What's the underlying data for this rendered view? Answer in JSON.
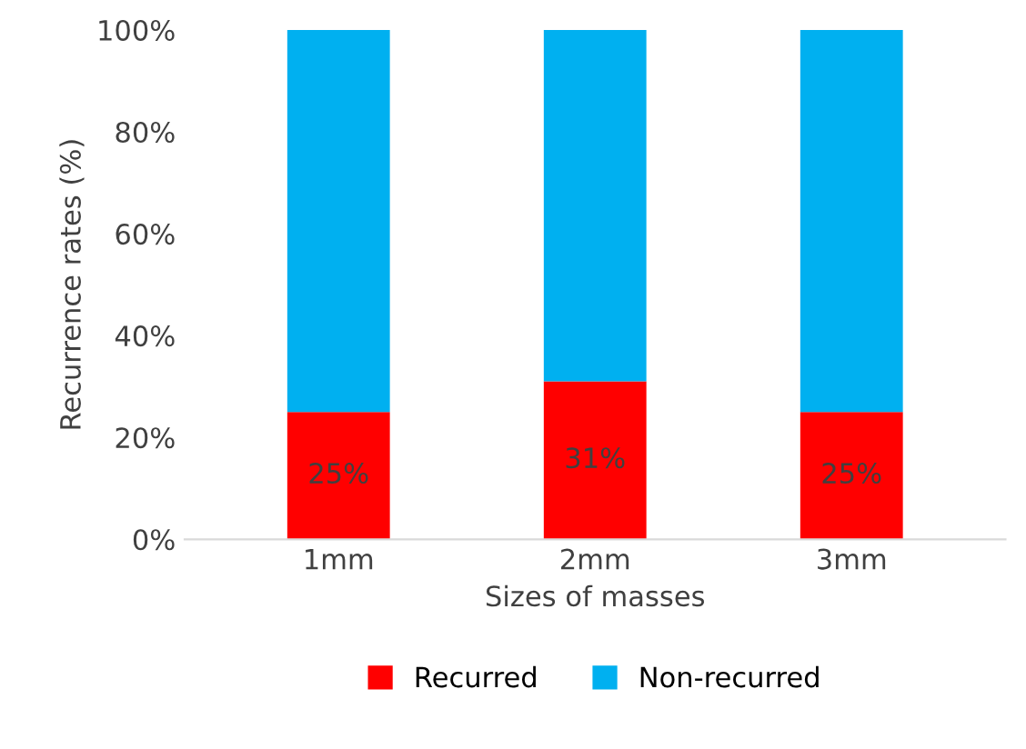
{
  "chart_data": {
    "type": "bar",
    "stacked": true,
    "xlabel": "Sizes of masses",
    "ylabel": "Recurrence rates (%)",
    "categories": [
      "1mm",
      "2mm",
      "3mm"
    ],
    "series": [
      {
        "name": "Recurred",
        "color": "#ff0000",
        "values": [
          25,
          31,
          25
        ],
        "value_labels": [
          "25%",
          "31%",
          "25%"
        ]
      },
      {
        "name": "Non-recurred",
        "color": "#00b0f0",
        "values": [
          75,
          69,
          75
        ]
      }
    ],
    "ylim": [
      0,
      100
    ],
    "yticks": [
      {
        "value": 0,
        "label": "0%"
      },
      {
        "value": 20,
        "label": "20%"
      },
      {
        "value": 40,
        "label": "40%"
      },
      {
        "value": 60,
        "label": "60%"
      },
      {
        "value": 80,
        "label": "80%"
      },
      {
        "value": 100,
        "label": "100%"
      }
    ],
    "grid": false,
    "legend": "bottom"
  }
}
